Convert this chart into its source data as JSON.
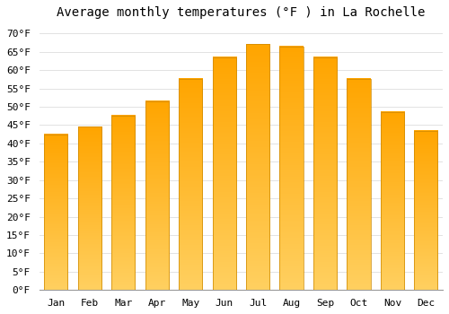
{
  "title": "Average monthly temperatures (°F ) in La Rochelle",
  "months": [
    "Jan",
    "Feb",
    "Mar",
    "Apr",
    "May",
    "Jun",
    "Jul",
    "Aug",
    "Sep",
    "Oct",
    "Nov",
    "Dec"
  ],
  "values": [
    42.5,
    44.5,
    47.5,
    51.5,
    57.5,
    63.5,
    67.0,
    66.5,
    63.5,
    57.5,
    48.5,
    43.5
  ],
  "bar_color_top": "#FFA500",
  "bar_color_bottom": "#FFD060",
  "bar_edge_color": "#CC8800",
  "background_color": "#FFFFFF",
  "grid_color": "#DDDDDD",
  "ylim": [
    0,
    72
  ],
  "yticks": [
    0,
    5,
    10,
    15,
    20,
    25,
    30,
    35,
    40,
    45,
    50,
    55,
    60,
    65,
    70
  ],
  "title_fontsize": 10,
  "tick_fontsize": 8,
  "font_family": "monospace"
}
